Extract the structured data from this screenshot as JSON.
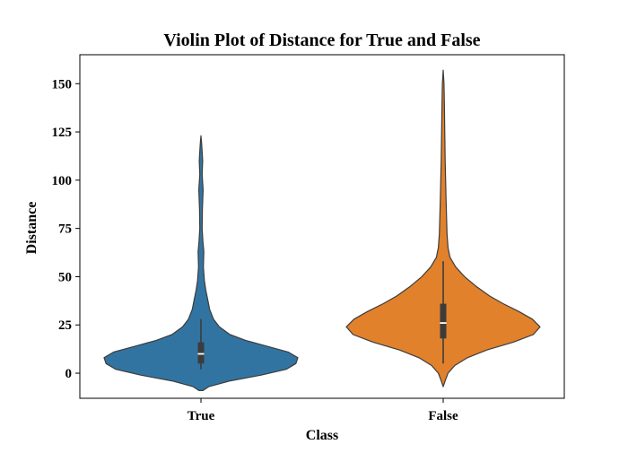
{
  "chart_data": {
    "type": "violin",
    "title": "Violin Plot of Distance for True and False",
    "xlabel": "Class",
    "ylabel": "Distance",
    "categories": [
      "True",
      "False"
    ],
    "ylim": [
      -13,
      165
    ],
    "yticks": [
      0,
      25,
      50,
      75,
      100,
      125,
      150
    ],
    "grid": false,
    "legend": "none",
    "series": [
      {
        "category": "True",
        "color": "#3274a1",
        "min": -9,
        "max": 123,
        "box": {
          "whisker_low": 2,
          "q1": 5,
          "median": 10,
          "q3": 16,
          "whisker_high": 28
        },
        "density_profile": [
          {
            "y": -9,
            "w": 0.02
          },
          {
            "y": -7,
            "w": 0.08
          },
          {
            "y": -4,
            "w": 0.3
          },
          {
            "y": -1,
            "w": 0.62
          },
          {
            "y": 2,
            "w": 0.88
          },
          {
            "y": 5,
            "w": 0.98
          },
          {
            "y": 8,
            "w": 1.0
          },
          {
            "y": 11,
            "w": 0.9
          },
          {
            "y": 14,
            "w": 0.68
          },
          {
            "y": 17,
            "w": 0.46
          },
          {
            "y": 20,
            "w": 0.3
          },
          {
            "y": 24,
            "w": 0.19
          },
          {
            "y": 28,
            "w": 0.13
          },
          {
            "y": 33,
            "w": 0.09
          },
          {
            "y": 38,
            "w": 0.07
          },
          {
            "y": 43,
            "w": 0.05
          },
          {
            "y": 48,
            "w": 0.035
          },
          {
            "y": 55,
            "w": 0.025
          },
          {
            "y": 63,
            "w": 0.03
          },
          {
            "y": 68,
            "w": 0.02
          },
          {
            "y": 75,
            "w": 0.012
          },
          {
            "y": 85,
            "w": 0.015
          },
          {
            "y": 95,
            "w": 0.022
          },
          {
            "y": 103,
            "w": 0.012
          },
          {
            "y": 110,
            "w": 0.018
          },
          {
            "y": 115,
            "w": 0.012
          },
          {
            "y": 120,
            "w": 0.006
          },
          {
            "y": 123,
            "w": 0.0
          }
        ]
      },
      {
        "category": "False",
        "color": "#e1812c",
        "min": -7,
        "max": 157,
        "box": {
          "whisker_low": 5,
          "q1": 18,
          "median": 26,
          "q3": 36,
          "whisker_high": 58
        },
        "density_profile": [
          {
            "y": -7,
            "w": 0.0
          },
          {
            "y": -4,
            "w": 0.02
          },
          {
            "y": 0,
            "w": 0.05
          },
          {
            "y": 4,
            "w": 0.12
          },
          {
            "y": 8,
            "w": 0.25
          },
          {
            "y": 12,
            "w": 0.45
          },
          {
            "y": 16,
            "w": 0.72
          },
          {
            "y": 20,
            "w": 0.93
          },
          {
            "y": 24,
            "w": 1.0
          },
          {
            "y": 28,
            "w": 0.92
          },
          {
            "y": 32,
            "w": 0.78
          },
          {
            "y": 36,
            "w": 0.62
          },
          {
            "y": 40,
            "w": 0.48
          },
          {
            "y": 45,
            "w": 0.34
          },
          {
            "y": 50,
            "w": 0.22
          },
          {
            "y": 55,
            "w": 0.13
          },
          {
            "y": 60,
            "w": 0.07
          },
          {
            "y": 65,
            "w": 0.05
          },
          {
            "y": 72,
            "w": 0.04
          },
          {
            "y": 80,
            "w": 0.035
          },
          {
            "y": 90,
            "w": 0.03
          },
          {
            "y": 100,
            "w": 0.025
          },
          {
            "y": 110,
            "w": 0.02
          },
          {
            "y": 120,
            "w": 0.018
          },
          {
            "y": 130,
            "w": 0.015
          },
          {
            "y": 140,
            "w": 0.012
          },
          {
            "y": 150,
            "w": 0.008
          },
          {
            "y": 157,
            "w": 0.0
          }
        ]
      }
    ]
  }
}
